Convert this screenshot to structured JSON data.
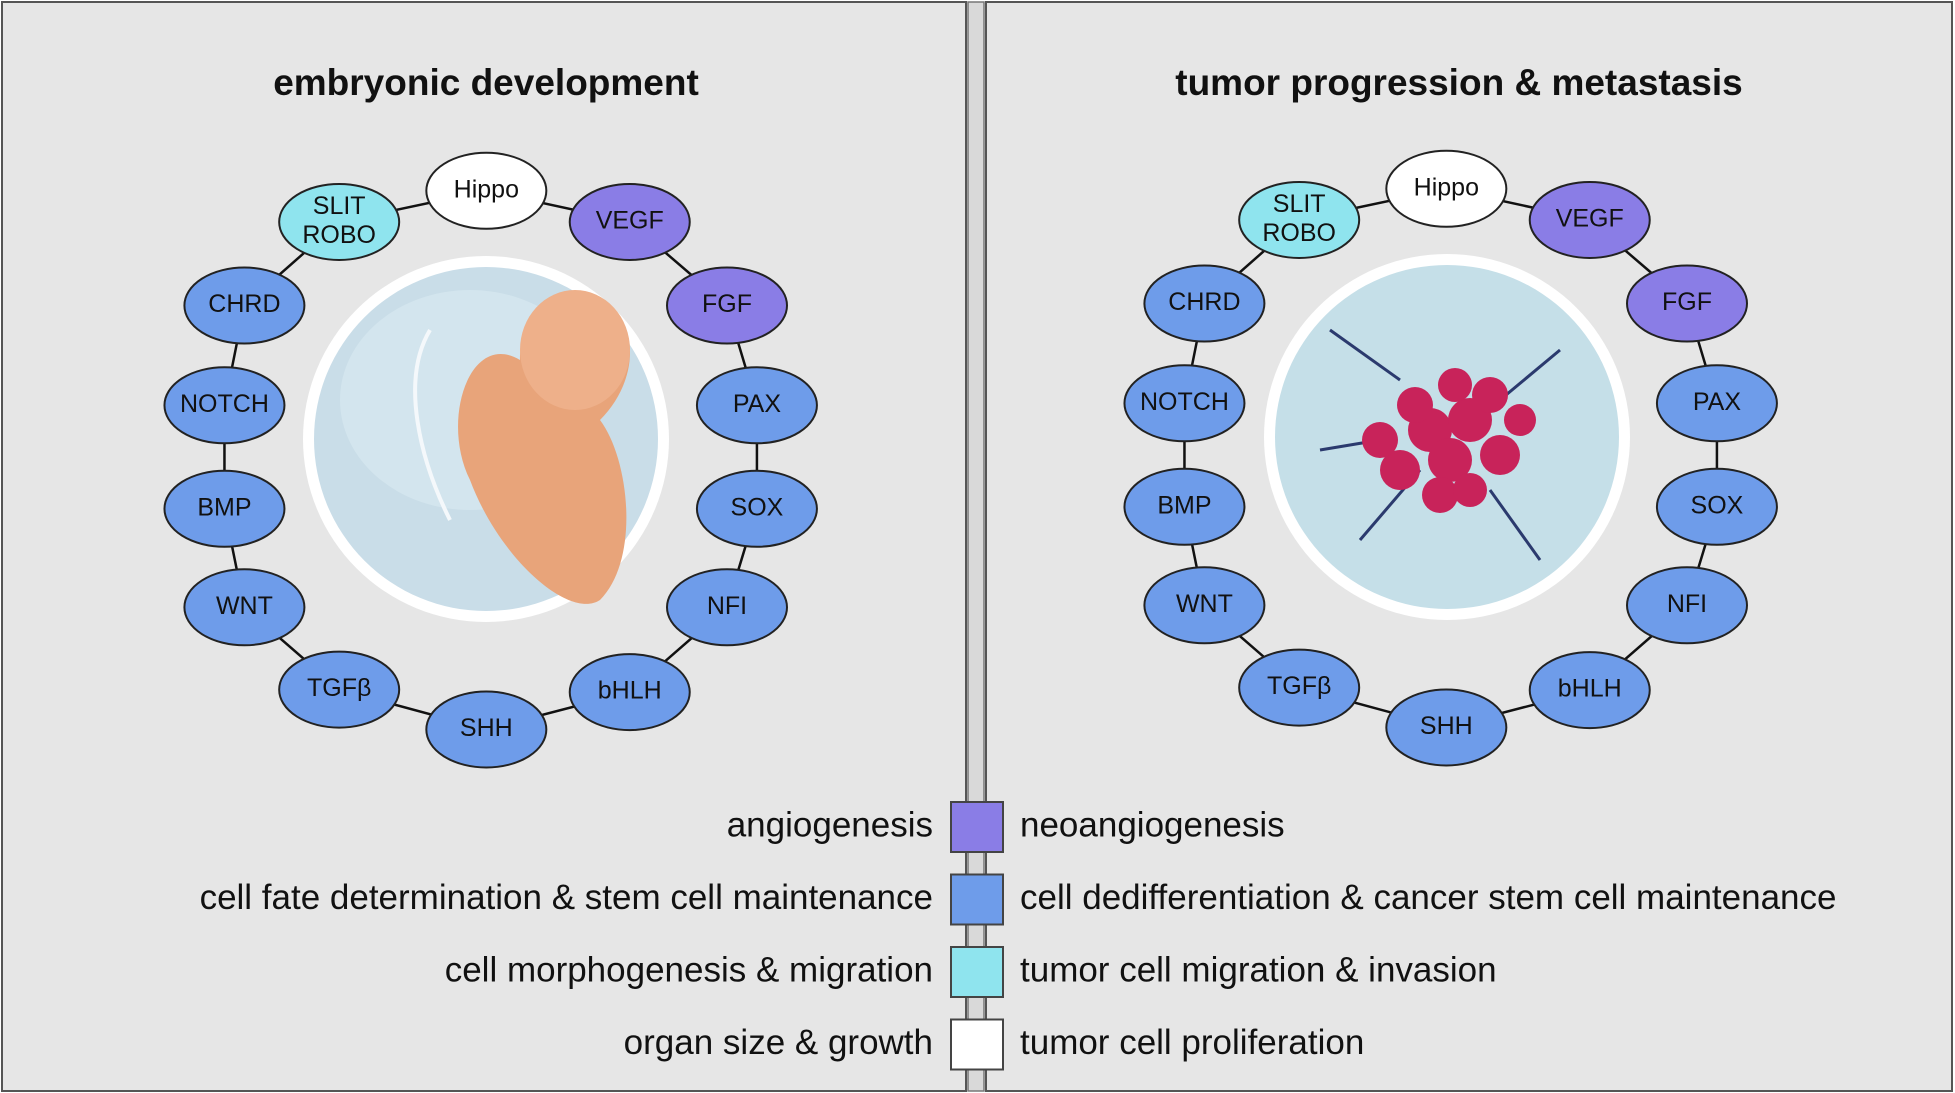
{
  "panels": [
    {
      "title": "embryonic development",
      "nodes": [
        {
          "lines": [
            "Hippo"
          ],
          "color": "#ffffff"
        },
        {
          "lines": [
            "VEGF"
          ],
          "color": "#8a7de6"
        },
        {
          "lines": [
            "FGF"
          ],
          "color": "#8a7de6"
        },
        {
          "lines": [
            "PAX"
          ],
          "color": "#6e9cea"
        },
        {
          "lines": [
            "SOX"
          ],
          "color": "#6e9cea"
        },
        {
          "lines": [
            "NFI"
          ],
          "color": "#6e9cea"
        },
        {
          "lines": [
            "bHLH"
          ],
          "color": "#6e9cea"
        },
        {
          "lines": [
            "SHH"
          ],
          "color": "#6e9cea"
        },
        {
          "lines": [
            "TGFβ"
          ],
          "color": "#6e9cea"
        },
        {
          "lines": [
            "WNT"
          ],
          "color": "#6e9cea"
        },
        {
          "lines": [
            "BMP"
          ],
          "color": "#6e9cea"
        },
        {
          "lines": [
            "NOTCH"
          ],
          "color": "#6e9cea"
        },
        {
          "lines": [
            "CHRD"
          ],
          "color": "#6e9cea"
        },
        {
          "lines": [
            "SLIT",
            "ROBO"
          ],
          "color": "#8fe4ee"
        }
      ]
    },
    {
      "title": "tumor progression & metastasis",
      "nodes": [
        {
          "lines": [
            "Hippo"
          ],
          "color": "#ffffff"
        },
        {
          "lines": [
            "VEGF"
          ],
          "color": "#8a7de6"
        },
        {
          "lines": [
            "FGF"
          ],
          "color": "#8a7de6"
        },
        {
          "lines": [
            "PAX"
          ],
          "color": "#6e9cea"
        },
        {
          "lines": [
            "SOX"
          ],
          "color": "#6e9cea"
        },
        {
          "lines": [
            "NFI"
          ],
          "color": "#6e9cea"
        },
        {
          "lines": [
            "bHLH"
          ],
          "color": "#6e9cea"
        },
        {
          "lines": [
            "SHH"
          ],
          "color": "#6e9cea"
        },
        {
          "lines": [
            "TGFβ"
          ],
          "color": "#6e9cea"
        },
        {
          "lines": [
            "WNT"
          ],
          "color": "#6e9cea"
        },
        {
          "lines": [
            "BMP"
          ],
          "color": "#6e9cea"
        },
        {
          "lines": [
            "NOTCH"
          ],
          "color": "#6e9cea"
        },
        {
          "lines": [
            "CHRD"
          ],
          "color": "#6e9cea"
        },
        {
          "lines": [
            "SLIT",
            "ROBO"
          ],
          "color": "#8fe4ee"
        }
      ]
    }
  ],
  "legend": [
    {
      "left": "angiogenesis",
      "right": "neoangiogenesis",
      "color": "#8a7de6"
    },
    {
      "left": "cell fate determination & stem cell maintenance",
      "right": "cell dedifferentiation & cancer stem cell maintenance",
      "color": "#6e9cea"
    },
    {
      "left": "cell morphogenesis & migration",
      "right": "tumor cell migration & invasion",
      "color": "#8fe4ee"
    },
    {
      "left": "organ size & growth",
      "right": "tumor cell proliferation",
      "color": "#ffffff"
    }
  ]
}
